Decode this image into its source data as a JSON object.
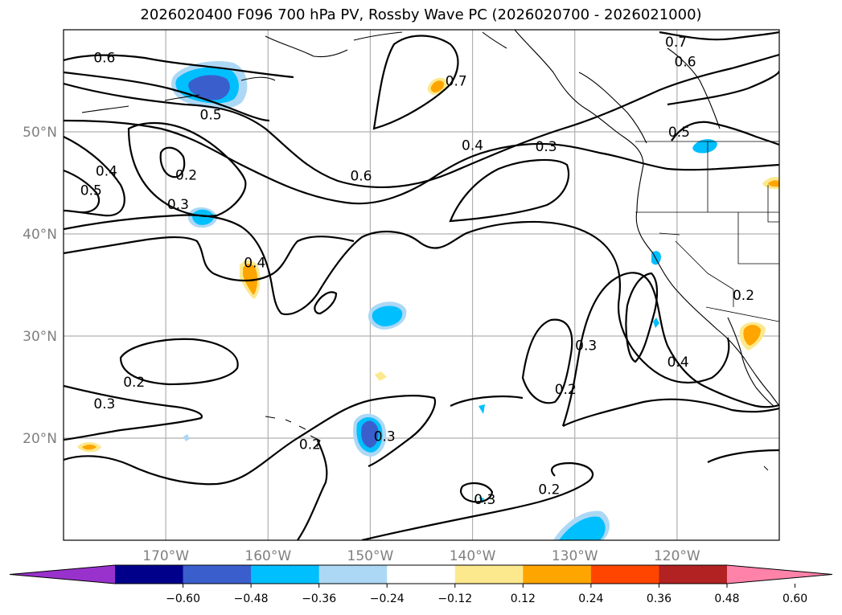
{
  "title": "2026020400 F096 700 hPa PV, Rossby Wave PC (2026020700 - 2026021000)",
  "map": {
    "lon_range": [
      -180,
      -110
    ],
    "lat_range": [
      10,
      60
    ],
    "lat_ticks": [
      {
        "value": 20,
        "label": "20°N"
      },
      {
        "value": 30,
        "label": "30°N"
      },
      {
        "value": 40,
        "label": "40°N"
      },
      {
        "value": 50,
        "label": "50°N"
      }
    ],
    "lon_ticks": [
      {
        "value": -170,
        "label": "170°W"
      },
      {
        "value": -160,
        "label": "160°W"
      },
      {
        "value": -150,
        "label": "150°W"
      },
      {
        "value": -140,
        "label": "140°W"
      },
      {
        "value": -130,
        "label": "130°W"
      },
      {
        "value": -120,
        "label": "120°W"
      }
    ],
    "grid": true,
    "contour_labels": [
      {
        "text": "0.6",
        "lon": -176,
        "lat": 57.3
      },
      {
        "text": "0.5",
        "lon": -165.6,
        "lat": 51.7
      },
      {
        "text": "0.4",
        "lon": -175.8,
        "lat": 46.2
      },
      {
        "text": "0.5",
        "lon": -177.3,
        "lat": 44.3
      },
      {
        "text": "0.2",
        "lon": -168,
        "lat": 45.8
      },
      {
        "text": "0.3",
        "lon": -168.8,
        "lat": 42.9
      },
      {
        "text": "0.4",
        "lon": -161.3,
        "lat": 37.2
      },
      {
        "text": "0.6",
        "lon": -150.9,
        "lat": 45.7
      },
      {
        "text": "0.7",
        "lon": -141.6,
        "lat": 55.0
      },
      {
        "text": "0.4",
        "lon": -140,
        "lat": 48.7
      },
      {
        "text": "0.3",
        "lon": -132.8,
        "lat": 48.6
      },
      {
        "text": "0.7",
        "lon": -120.1,
        "lat": 58.8
      },
      {
        "text": "0.6",
        "lon": -119.2,
        "lat": 56.9
      },
      {
        "text": "0.5",
        "lon": -119.8,
        "lat": 50.0
      },
      {
        "text": "0.2",
        "lon": -173.1,
        "lat": 25.5
      },
      {
        "text": "0.3",
        "lon": -176,
        "lat": 23.4
      },
      {
        "text": "0.2",
        "lon": -155.9,
        "lat": 19.4
      },
      {
        "text": "0.3",
        "lon": -148.6,
        "lat": 20.2
      },
      {
        "text": "0.3",
        "lon": -138.8,
        "lat": 14.0
      },
      {
        "text": "0.2",
        "lon": -130.9,
        "lat": 24.8
      },
      {
        "text": "0.3",
        "lon": -128.9,
        "lat": 29.1
      },
      {
        "text": "0.4",
        "lon": -119.9,
        "lat": 27.5
      },
      {
        "text": "0.2",
        "lon": -132.5,
        "lat": 15.0
      },
      {
        "text": "0.2",
        "lon": -113.5,
        "lat": 34.0
      }
    ]
  },
  "colorbar": {
    "colors": [
      "#9932cc",
      "#00008b",
      "#3a5fcd",
      "#00bfff",
      "#add8f5",
      "#ffffff",
      "#fce98e",
      "#ffa500",
      "#ff4500",
      "#b22222",
      "#ff82a9"
    ],
    "ticks": [
      "−0.60",
      "−0.48",
      "−0.36",
      "−0.24",
      "−0.12",
      "0.12",
      "0.24",
      "0.36",
      "0.48",
      "0.60"
    ]
  }
}
